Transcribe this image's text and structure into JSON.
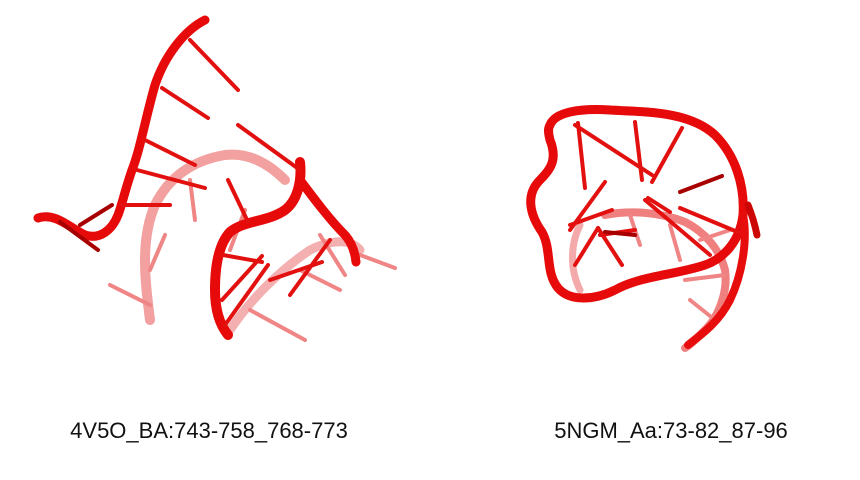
{
  "structures": [
    {
      "caption": "4V5O_BA:743-758_768-773",
      "rendering": "rna-cartoon"
    },
    {
      "caption": "5NGM_Aa:73-82_87-96",
      "rendering": "rna-cartoon"
    }
  ],
  "colors": {
    "backbone": "#e60a0a",
    "backbone_dark": "#b30000",
    "backbone_faded": "#f08080",
    "background": "#ffffff"
  }
}
